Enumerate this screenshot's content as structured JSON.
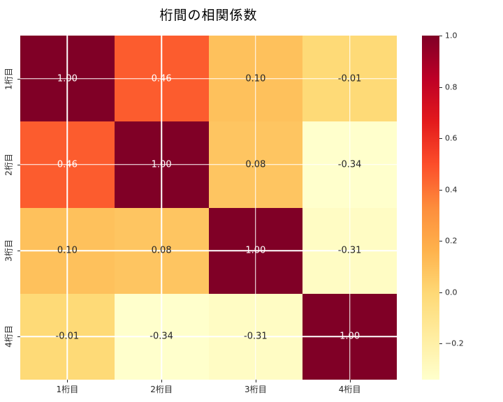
{
  "chart_data": {
    "type": "heatmap",
    "title": "桁間の相関係数",
    "x_categories": [
      "1桁目",
      "2桁目",
      "3桁目",
      "4桁目"
    ],
    "y_categories": [
      "1桁目",
      "2桁目",
      "3桁目",
      "4桁目"
    ],
    "matrix": [
      [
        1.0,
        0.46,
        0.1,
        -0.01
      ],
      [
        0.46,
        1.0,
        0.08,
        -0.34
      ],
      [
        0.1,
        0.08,
        1.0,
        -0.31
      ],
      [
        -0.01,
        -0.34,
        -0.31,
        1.0
      ]
    ],
    "annotations": [
      [
        "1.00",
        "0.46",
        "0.10",
        "-0.01"
      ],
      [
        "0.46",
        "1.00",
        "0.08",
        "-0.34"
      ],
      [
        "0.10",
        "0.08",
        "1.00",
        "-0.31"
      ],
      [
        "-0.01",
        "-0.34",
        "-0.31",
        "1.00"
      ]
    ],
    "vmin": -0.34,
    "vmax": 1.0,
    "grid": true,
    "gridline_color": "#ffffff",
    "colormap": {
      "name": "YlOrRd",
      "stops": [
        "#ffffcc",
        "#ffeda0",
        "#fed976",
        "#feb24c",
        "#fd8d3c",
        "#fc4e2a",
        "#e31a1c",
        "#bd0026",
        "#800026"
      ]
    },
    "colorbar": {
      "position": "right",
      "tick_labels": [
        "1.0",
        "0.8",
        "0.6",
        "0.4",
        "0.2",
        "0.0",
        "−0.2"
      ],
      "tick_values": [
        1.0,
        0.8,
        0.6,
        0.4,
        0.2,
        0.0,
        -0.2
      ]
    },
    "annotation_colors": {
      "on_dark": "#ffffff",
      "on_light": "#262626"
    },
    "tick_color": "#262626",
    "background": "#ffffff"
  }
}
